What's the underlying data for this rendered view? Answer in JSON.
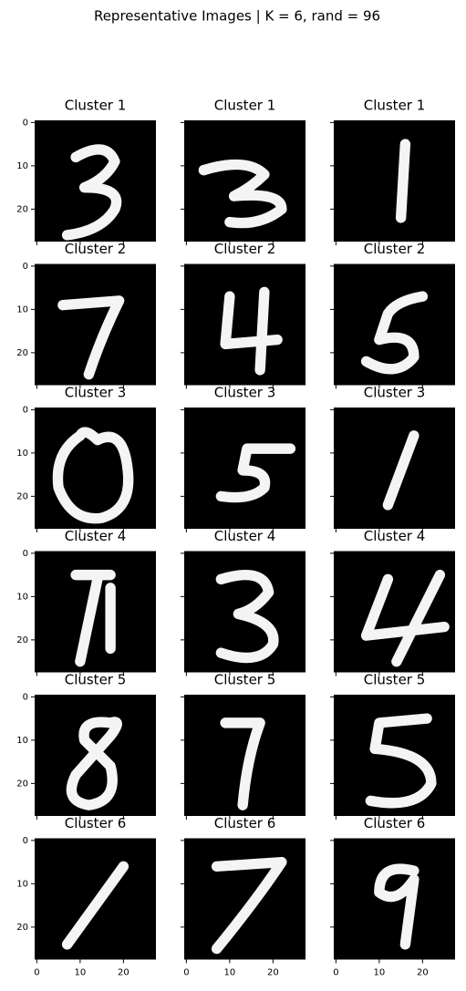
{
  "chart_data": {
    "type": "image-grid",
    "title": "Representative Images | K = 6, rand = 96",
    "panels": [
      {
        "title": "Cluster 1"
      },
      {
        "title": "Cluster 1"
      },
      {
        "title": "Cluster 1"
      },
      {
        "title": "Cluster 2"
      },
      {
        "title": "Cluster 2"
      },
      {
        "title": "Cluster 2"
      },
      {
        "title": "Cluster 3"
      },
      {
        "title": "Cluster 3"
      },
      {
        "title": "Cluster 3"
      },
      {
        "title": "Cluster 4"
      },
      {
        "title": "Cluster 4"
      },
      {
        "title": "Cluster 4"
      },
      {
        "title": "Cluster 5"
      },
      {
        "title": "Cluster 5"
      },
      {
        "title": "Cluster 5"
      },
      {
        "title": "Cluster 6"
      },
      {
        "title": "Cluster 6"
      },
      {
        "title": "Cluster 6"
      }
    ],
    "columns": 3,
    "xlim": [
      -0.5,
      27.5
    ],
    "ylim": [
      27.5,
      -0.5
    ],
    "xticks": [
      0,
      10,
      20
    ],
    "yticks": [
      0,
      10,
      20
    ]
  }
}
